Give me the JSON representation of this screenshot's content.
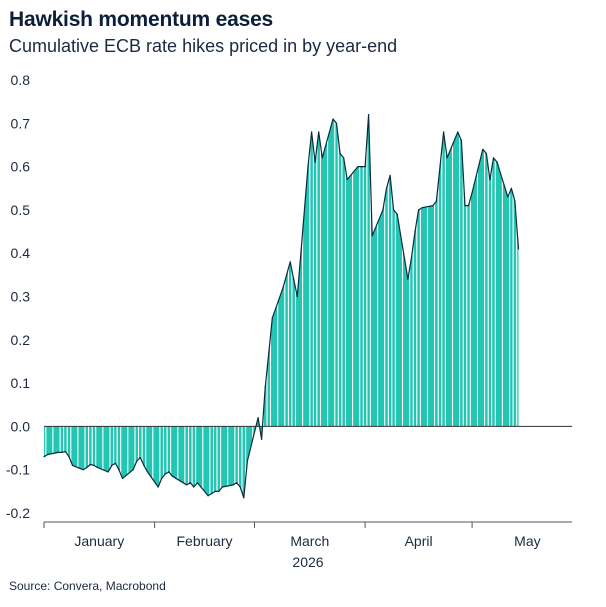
{
  "title": "Hawkish momentum eases",
  "subtitle": "Cumulative ECB rate hikes priced in by year-end",
  "source": "Source: Convera, Macrobond",
  "colors": {
    "area": "#22c6b2",
    "stripe": "#ffffff",
    "line": "#0b2a40",
    "axis": "#555555"
  },
  "chart_data": {
    "type": "area",
    "title": "Hawkish momentum eases",
    "subtitle": "Cumulative ECB rate hikes priced in by year-end",
    "ylim": [
      -0.2,
      0.8
    ],
    "y_ticks": [
      "0.8",
      "0.7",
      "0.6",
      "0.5",
      "0.4",
      "0.3",
      "0.2",
      "0.1",
      "0.0",
      "-0.1",
      "-0.2"
    ],
    "x_month_labels": [
      "January",
      "February",
      "March",
      "April",
      "May"
    ],
    "x_year_label": "2026",
    "grid": false,
    "x_range": [
      "2026-01-01",
      "2026-05-29"
    ],
    "points": [
      [
        "2026-01-01",
        -0.07
      ],
      [
        "2026-01-02",
        -0.065
      ],
      [
        "2026-01-05",
        -0.06
      ],
      [
        "2026-01-06",
        -0.06
      ],
      [
        "2026-01-07",
        -0.058
      ],
      [
        "2026-01-08",
        -0.07
      ],
      [
        "2026-01-09",
        -0.09
      ],
      [
        "2026-01-12",
        -0.1
      ],
      [
        "2026-01-13",
        -0.095
      ],
      [
        "2026-01-14",
        -0.088
      ],
      [
        "2026-01-15",
        -0.09
      ],
      [
        "2026-01-16",
        -0.095
      ],
      [
        "2026-01-19",
        -0.105
      ],
      [
        "2026-01-20",
        -0.09
      ],
      [
        "2026-01-21",
        -0.085
      ],
      [
        "2026-01-22",
        -0.1
      ],
      [
        "2026-01-23",
        -0.12
      ],
      [
        "2026-01-26",
        -0.1
      ],
      [
        "2026-01-27",
        -0.08
      ],
      [
        "2026-01-28",
        -0.072
      ],
      [
        "2026-01-29",
        -0.09
      ],
      [
        "2026-01-30",
        -0.105
      ],
      [
        "2026-02-02",
        -0.14
      ],
      [
        "2026-02-03",
        -0.12
      ],
      [
        "2026-02-04",
        -0.11
      ],
      [
        "2026-02-05",
        -0.105
      ],
      [
        "2026-02-06",
        -0.115
      ],
      [
        "2026-02-09",
        -0.13
      ],
      [
        "2026-02-10",
        -0.135
      ],
      [
        "2026-02-11",
        -0.13
      ],
      [
        "2026-02-12",
        -0.14
      ],
      [
        "2026-02-13",
        -0.13
      ],
      [
        "2026-02-16",
        -0.16
      ],
      [
        "2026-02-17",
        -0.155
      ],
      [
        "2026-02-18",
        -0.15
      ],
      [
        "2026-02-19",
        -0.15
      ],
      [
        "2026-02-20",
        -0.14
      ],
      [
        "2026-02-23",
        -0.135
      ],
      [
        "2026-02-24",
        -0.13
      ],
      [
        "2026-02-25",
        -0.14
      ],
      [
        "2026-02-26",
        -0.165
      ],
      [
        "2026-02-27",
        -0.08
      ],
      [
        "2026-03-02",
        0.02
      ],
      [
        "2026-03-03",
        -0.03
      ],
      [
        "2026-03-04",
        0.09
      ],
      [
        "2026-03-05",
        0.17
      ],
      [
        "2026-03-06",
        0.25
      ],
      [
        "2026-03-09",
        0.32
      ],
      [
        "2026-03-10",
        0.35
      ],
      [
        "2026-03-11",
        0.38
      ],
      [
        "2026-03-12",
        0.34
      ],
      [
        "2026-03-13",
        0.3
      ],
      [
        "2026-03-16",
        0.6
      ],
      [
        "2026-03-17",
        0.68
      ],
      [
        "2026-03-18",
        0.61
      ],
      [
        "2026-03-19",
        0.68
      ],
      [
        "2026-03-20",
        0.62
      ],
      [
        "2026-03-23",
        0.71
      ],
      [
        "2026-03-24",
        0.7
      ],
      [
        "2026-03-25",
        0.63
      ],
      [
        "2026-03-26",
        0.62
      ],
      [
        "2026-03-27",
        0.57
      ],
      [
        "2026-03-30",
        0.6
      ],
      [
        "2026-03-31",
        0.6
      ],
      [
        "2026-04-01",
        0.6
      ],
      [
        "2026-04-02",
        0.72
      ],
      [
        "2026-04-03",
        0.44
      ],
      [
        "2026-04-06",
        0.5
      ],
      [
        "2026-04-07",
        0.55
      ],
      [
        "2026-04-08",
        0.58
      ],
      [
        "2026-04-09",
        0.5
      ],
      [
        "2026-04-10",
        0.49
      ],
      [
        "2026-04-13",
        0.34
      ],
      [
        "2026-04-14",
        0.39
      ],
      [
        "2026-04-15",
        0.45
      ],
      [
        "2026-04-16",
        0.5
      ],
      [
        "2026-04-17",
        0.505
      ],
      [
        "2026-04-20",
        0.51
      ],
      [
        "2026-04-21",
        0.52
      ],
      [
        "2026-04-22",
        0.6
      ],
      [
        "2026-04-23",
        0.68
      ],
      [
        "2026-04-24",
        0.62
      ],
      [
        "2026-04-27",
        0.68
      ],
      [
        "2026-04-28",
        0.66
      ],
      [
        "2026-04-29",
        0.51
      ],
      [
        "2026-04-30",
        0.51
      ],
      [
        "2026-05-01",
        0.54
      ],
      [
        "2026-05-04",
        0.64
      ],
      [
        "2026-05-05",
        0.63
      ],
      [
        "2026-05-06",
        0.57
      ],
      [
        "2026-05-07",
        0.62
      ],
      [
        "2026-05-08",
        0.61
      ],
      [
        "2026-05-11",
        0.53
      ],
      [
        "2026-05-12",
        0.55
      ],
      [
        "2026-05-13",
        0.52
      ],
      [
        "2026-05-14",
        0.41
      ]
    ]
  }
}
